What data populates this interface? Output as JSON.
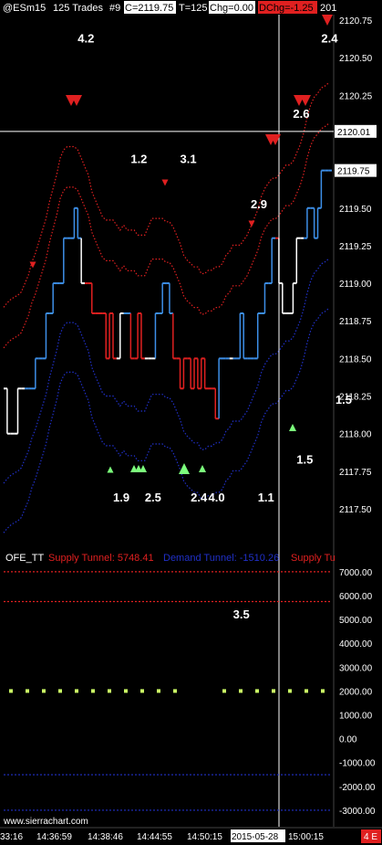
{
  "header": {
    "symbol": "@ESm15",
    "bar_type": "125 Trades",
    "chart_num": "#9",
    "close": "C=2119.75",
    "trades": "T=125",
    "chg": "Chg=0.00",
    "dchg": "DChg=-1.25",
    "year": "201"
  },
  "colors": {
    "background": "#000000",
    "up_bar": "#3d8fe8",
    "down_bar": "#e02020",
    "neutral_bar": "#ffffff",
    "upper_band": "#e02020",
    "lower_band": "#2030c8",
    "supply_tunnel": "#e02020",
    "demand_tunnel": "#2030c8",
    "signal": "#ccff66"
  },
  "chart_data": [
    {
      "type": "line",
      "panel": "price",
      "y_ticks": [
        "2120.75",
        "2120.50",
        "2120.25",
        "2120.01",
        "2119.75",
        "2119.50",
        "2119.25",
        "2119.00",
        "2118.75",
        "2118.50",
        "2118.25",
        "2118.00",
        "2117.75",
        "2117.50"
      ],
      "ylim": [
        2117.4,
        2120.85
      ],
      "current_price_label": "2119.75",
      "crosshair_price_label": "2120.01",
      "crosshair_price": 2120.01,
      "annotations": [
        {
          "text": "4.2",
          "x": 21,
          "y": 2120.6
        },
        {
          "text": "2.4",
          "x": 90,
          "y": 2120.6
        },
        {
          "text": "2.6",
          "x": 82,
          "y": 2120.1
        },
        {
          "text": "1.2",
          "x": 36,
          "y": 2119.8
        },
        {
          "text": "3.1",
          "x": 50,
          "y": 2119.8
        },
        {
          "text": "2.9",
          "x": 70,
          "y": 2119.5
        },
        {
          "text": "1.5",
          "x": 94,
          "y": 2118.2
        },
        {
          "text": "1.5",
          "x": 83,
          "y": 2117.8
        },
        {
          "text": "1.9",
          "x": 31,
          "y": 2117.55
        },
        {
          "text": "2.5",
          "x": 40,
          "y": 2117.55
        },
        {
          "text": "2.4",
          "x": 53,
          "y": 2117.55
        },
        {
          "text": "4.0",
          "x": 58,
          "y": 2117.55
        },
        {
          "text": "1.1",
          "x": 72,
          "y": 2117.55
        },
        {
          "text": "3.5",
          "x": 65,
          "y": 2116.77
        }
      ],
      "bars": [
        {
          "x": 0,
          "v": 2118.3,
          "c": "w"
        },
        {
          "x": 1,
          "v": 2118.0,
          "c": "w"
        },
        {
          "x": 2,
          "v": 2118.0,
          "c": "w"
        },
        {
          "x": 3,
          "v": 2118.0,
          "c": "w"
        },
        {
          "x": 4,
          "v": 2118.3,
          "c": "w"
        },
        {
          "x": 5,
          "v": 2118.3,
          "c": "w"
        },
        {
          "x": 6,
          "v": 2118.3,
          "c": "u"
        },
        {
          "x": 7,
          "v": 2118.3,
          "c": "u"
        },
        {
          "x": 8,
          "v": 2118.3,
          "c": "u"
        },
        {
          "x": 9,
          "v": 2118.5,
          "c": "u"
        },
        {
          "x": 10,
          "v": 2118.5,
          "c": "u"
        },
        {
          "x": 11,
          "v": 2118.5,
          "c": "u"
        },
        {
          "x": 12,
          "v": 2118.8,
          "c": "u"
        },
        {
          "x": 13,
          "v": 2118.8,
          "c": "u"
        },
        {
          "x": 14,
          "v": 2119.0,
          "c": "u"
        },
        {
          "x": 15,
          "v": 2119.0,
          "c": "u"
        },
        {
          "x": 16,
          "v": 2119.0,
          "c": "u"
        },
        {
          "x": 17,
          "v": 2119.3,
          "c": "u"
        },
        {
          "x": 18,
          "v": 2119.3,
          "c": "u"
        },
        {
          "x": 19,
          "v": 2119.3,
          "c": "u"
        },
        {
          "x": 20,
          "v": 2119.5,
          "c": "u"
        },
        {
          "x": 21,
          "v": 2119.3,
          "c": "u"
        },
        {
          "x": 22,
          "v": 2119.0,
          "c": "w"
        },
        {
          "x": 23,
          "v": 2119.0,
          "c": "d"
        },
        {
          "x": 24,
          "v": 2119.0,
          "c": "d"
        },
        {
          "x": 25,
          "v": 2118.8,
          "c": "d"
        },
        {
          "x": 26,
          "v": 2118.8,
          "c": "d"
        },
        {
          "x": 27,
          "v": 2118.8,
          "c": "d"
        },
        {
          "x": 28,
          "v": 2118.8,
          "c": "d"
        },
        {
          "x": 29,
          "v": 2118.5,
          "c": "d"
        },
        {
          "x": 30,
          "v": 2118.8,
          "c": "d"
        },
        {
          "x": 31,
          "v": 2118.5,
          "c": "d"
        },
        {
          "x": 32,
          "v": 2118.5,
          "c": "w"
        },
        {
          "x": 33,
          "v": 2118.8,
          "c": "w"
        },
        {
          "x": 34,
          "v": 2118.8,
          "c": "u"
        },
        {
          "x": 35,
          "v": 2118.8,
          "c": "u"
        },
        {
          "x": 36,
          "v": 2118.5,
          "c": "d"
        },
        {
          "x": 37,
          "v": 2118.5,
          "c": "d"
        },
        {
          "x": 38,
          "v": 2118.8,
          "c": "d"
        },
        {
          "x": 39,
          "v": 2118.5,
          "c": "d"
        },
        {
          "x": 40,
          "v": 2118.5,
          "c": "w"
        },
        {
          "x": 41,
          "v": 2118.5,
          "c": "w"
        },
        {
          "x": 42,
          "v": 2118.5,
          "c": "w"
        },
        {
          "x": 43,
          "v": 2118.8,
          "c": "u"
        },
        {
          "x": 44,
          "v": 2118.8,
          "c": "u"
        },
        {
          "x": 45,
          "v": 2119.0,
          "c": "u"
        },
        {
          "x": 46,
          "v": 2119.0,
          "c": "u"
        },
        {
          "x": 47,
          "v": 2118.8,
          "c": "u"
        },
        {
          "x": 48,
          "v": 2118.5,
          "c": "d"
        },
        {
          "x": 49,
          "v": 2118.5,
          "c": "d"
        },
        {
          "x": 50,
          "v": 2118.3,
          "c": "d"
        },
        {
          "x": 51,
          "v": 2118.5,
          "c": "d"
        },
        {
          "x": 52,
          "v": 2118.5,
          "c": "d"
        },
        {
          "x": 53,
          "v": 2118.3,
          "c": "d"
        },
        {
          "x": 54,
          "v": 2118.5,
          "c": "d"
        },
        {
          "x": 55,
          "v": 2118.3,
          "c": "d"
        },
        {
          "x": 56,
          "v": 2118.5,
          "c": "d"
        },
        {
          "x": 57,
          "v": 2118.3,
          "c": "d"
        },
        {
          "x": 58,
          "v": 2118.3,
          "c": "d"
        },
        {
          "x": 59,
          "v": 2118.3,
          "c": "d"
        },
        {
          "x": 60,
          "v": 2118.1,
          "c": "d"
        },
        {
          "x": 61,
          "v": 2118.5,
          "c": "u"
        },
        {
          "x": 62,
          "v": 2118.5,
          "c": "u"
        },
        {
          "x": 63,
          "v": 2118.5,
          "c": "u"
        },
        {
          "x": 64,
          "v": 2118.5,
          "c": "w"
        },
        {
          "x": 65,
          "v": 2118.5,
          "c": "u"
        },
        {
          "x": 66,
          "v": 2118.5,
          "c": "u"
        },
        {
          "x": 67,
          "v": 2118.8,
          "c": "u"
        },
        {
          "x": 68,
          "v": 2118.5,
          "c": "u"
        },
        {
          "x": 69,
          "v": 2118.5,
          "c": "u"
        },
        {
          "x": 70,
          "v": 2118.5,
          "c": "u"
        },
        {
          "x": 71,
          "v": 2118.5,
          "c": "u"
        },
        {
          "x": 72,
          "v": 2118.8,
          "c": "u"
        },
        {
          "x": 73,
          "v": 2118.8,
          "c": "u"
        },
        {
          "x": 74,
          "v": 2119.0,
          "c": "u"
        },
        {
          "x": 75,
          "v": 2119.0,
          "c": "u"
        },
        {
          "x": 76,
          "v": 2119.3,
          "c": "u"
        },
        {
          "x": 77,
          "v": 2119.3,
          "c": "d"
        },
        {
          "x": 78,
          "v": 2119.0,
          "c": "w"
        },
        {
          "x": 79,
          "v": 2118.8,
          "c": "w"
        },
        {
          "x": 80,
          "v": 2118.8,
          "c": "w"
        },
        {
          "x": 81,
          "v": 2118.8,
          "c": "w"
        },
        {
          "x": 82,
          "v": 2119.0,
          "c": "w"
        },
        {
          "x": 83,
          "v": 2119.3,
          "c": "w"
        },
        {
          "x": 84,
          "v": 2119.3,
          "c": "w"
        },
        {
          "x": 85,
          "v": 2119.3,
          "c": "u"
        },
        {
          "x": 86,
          "v": 2119.5,
          "c": "u"
        },
        {
          "x": 87,
          "v": 2119.5,
          "c": "u"
        },
        {
          "x": 88,
          "v": 2119.3,
          "c": "u"
        },
        {
          "x": 89,
          "v": 2119.5,
          "c": "u"
        },
        {
          "x": 90,
          "v": 2119.75,
          "c": "u"
        },
        {
          "x": 91,
          "v": 2119.75,
          "c": "u"
        },
        {
          "x": 92,
          "v": 2119.75,
          "c": "u"
        }
      ]
    },
    {
      "type": "line",
      "panel": "indicator",
      "legend": [
        {
          "text": "OFE_TT",
          "color": "#ffffff"
        },
        {
          "text": "Supply Tunnel: 5748.41",
          "color": "#e02020"
        },
        {
          "text": "Demand Tunnel: -1510.26",
          "color": "#2030c8"
        },
        {
          "text": "Supply Tu",
          "color": "#e02020"
        }
      ],
      "y_ticks": [
        "7000.00",
        "6000.00",
        "5000.00",
        "4000.00",
        "3000.00",
        "2000.00",
        "1000.00",
        "0.00",
        "-1000.00",
        "-2000.00",
        "-3000.00"
      ],
      "ylim": [
        -3500,
        7800
      ],
      "levels": [
        {
          "name": "supply-upper",
          "value": 7000,
          "color": "#e02020"
        },
        {
          "name": "supply-lower",
          "value": 5750,
          "color": "#e02020"
        },
        {
          "name": "signal",
          "value": 2000,
          "color": "#ccff66"
        },
        {
          "name": "demand-upper",
          "value": -1510,
          "color": "#2030c8"
        },
        {
          "name": "demand-lower",
          "value": -3000,
          "color": "#2030c8"
        }
      ]
    }
  ],
  "x_axis": {
    "labels": [
      "33:16",
      "14:36:59",
      "14:38:46",
      "14:44:55",
      "14:50:15",
      "2015-05-28",
      "15:00:15"
    ],
    "badge": "4 E"
  },
  "watermark": "www.sierrachart.com"
}
